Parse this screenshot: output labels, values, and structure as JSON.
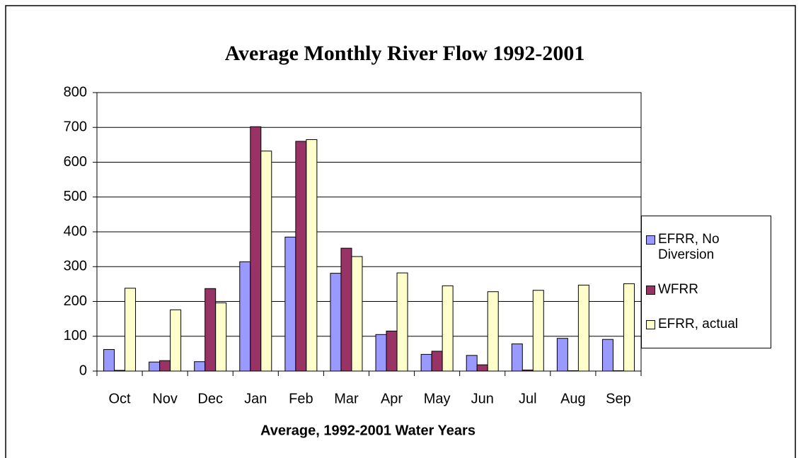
{
  "chart_data": {
    "type": "bar",
    "title": "Average Monthly River Flow 1992-2001",
    "x_label": "Average, 1992-2001 Water Years",
    "categories": [
      "Oct",
      "Nov",
      "Dec",
      "Jan",
      "Feb",
      "Mar",
      "Apr",
      "May",
      "Jun",
      "Jul",
      "Aug",
      "Sep"
    ],
    "series": [
      {
        "name": "EFRR, No Diversion",
        "color": "#9999ff",
        "values": [
          62,
          26,
          27,
          314,
          385,
          281,
          105,
          48,
          45,
          78,
          94,
          91
        ]
      },
      {
        "name": "WFRR",
        "color": "#993366",
        "values": [
          2,
          30,
          237,
          702,
          660,
          353,
          115,
          57,
          18,
          3,
          1,
          1
        ]
      },
      {
        "name": "EFRR, actual",
        "color": "#ffffcc",
        "values": [
          238,
          176,
          196,
          632,
          665,
          329,
          282,
          245,
          228,
          232,
          247,
          251
        ]
      }
    ],
    "ylim": [
      0,
      800
    ],
    "yticks": [
      0,
      100,
      200,
      300,
      400,
      500,
      600,
      700,
      800
    ],
    "grid": true,
    "legend": "right"
  }
}
